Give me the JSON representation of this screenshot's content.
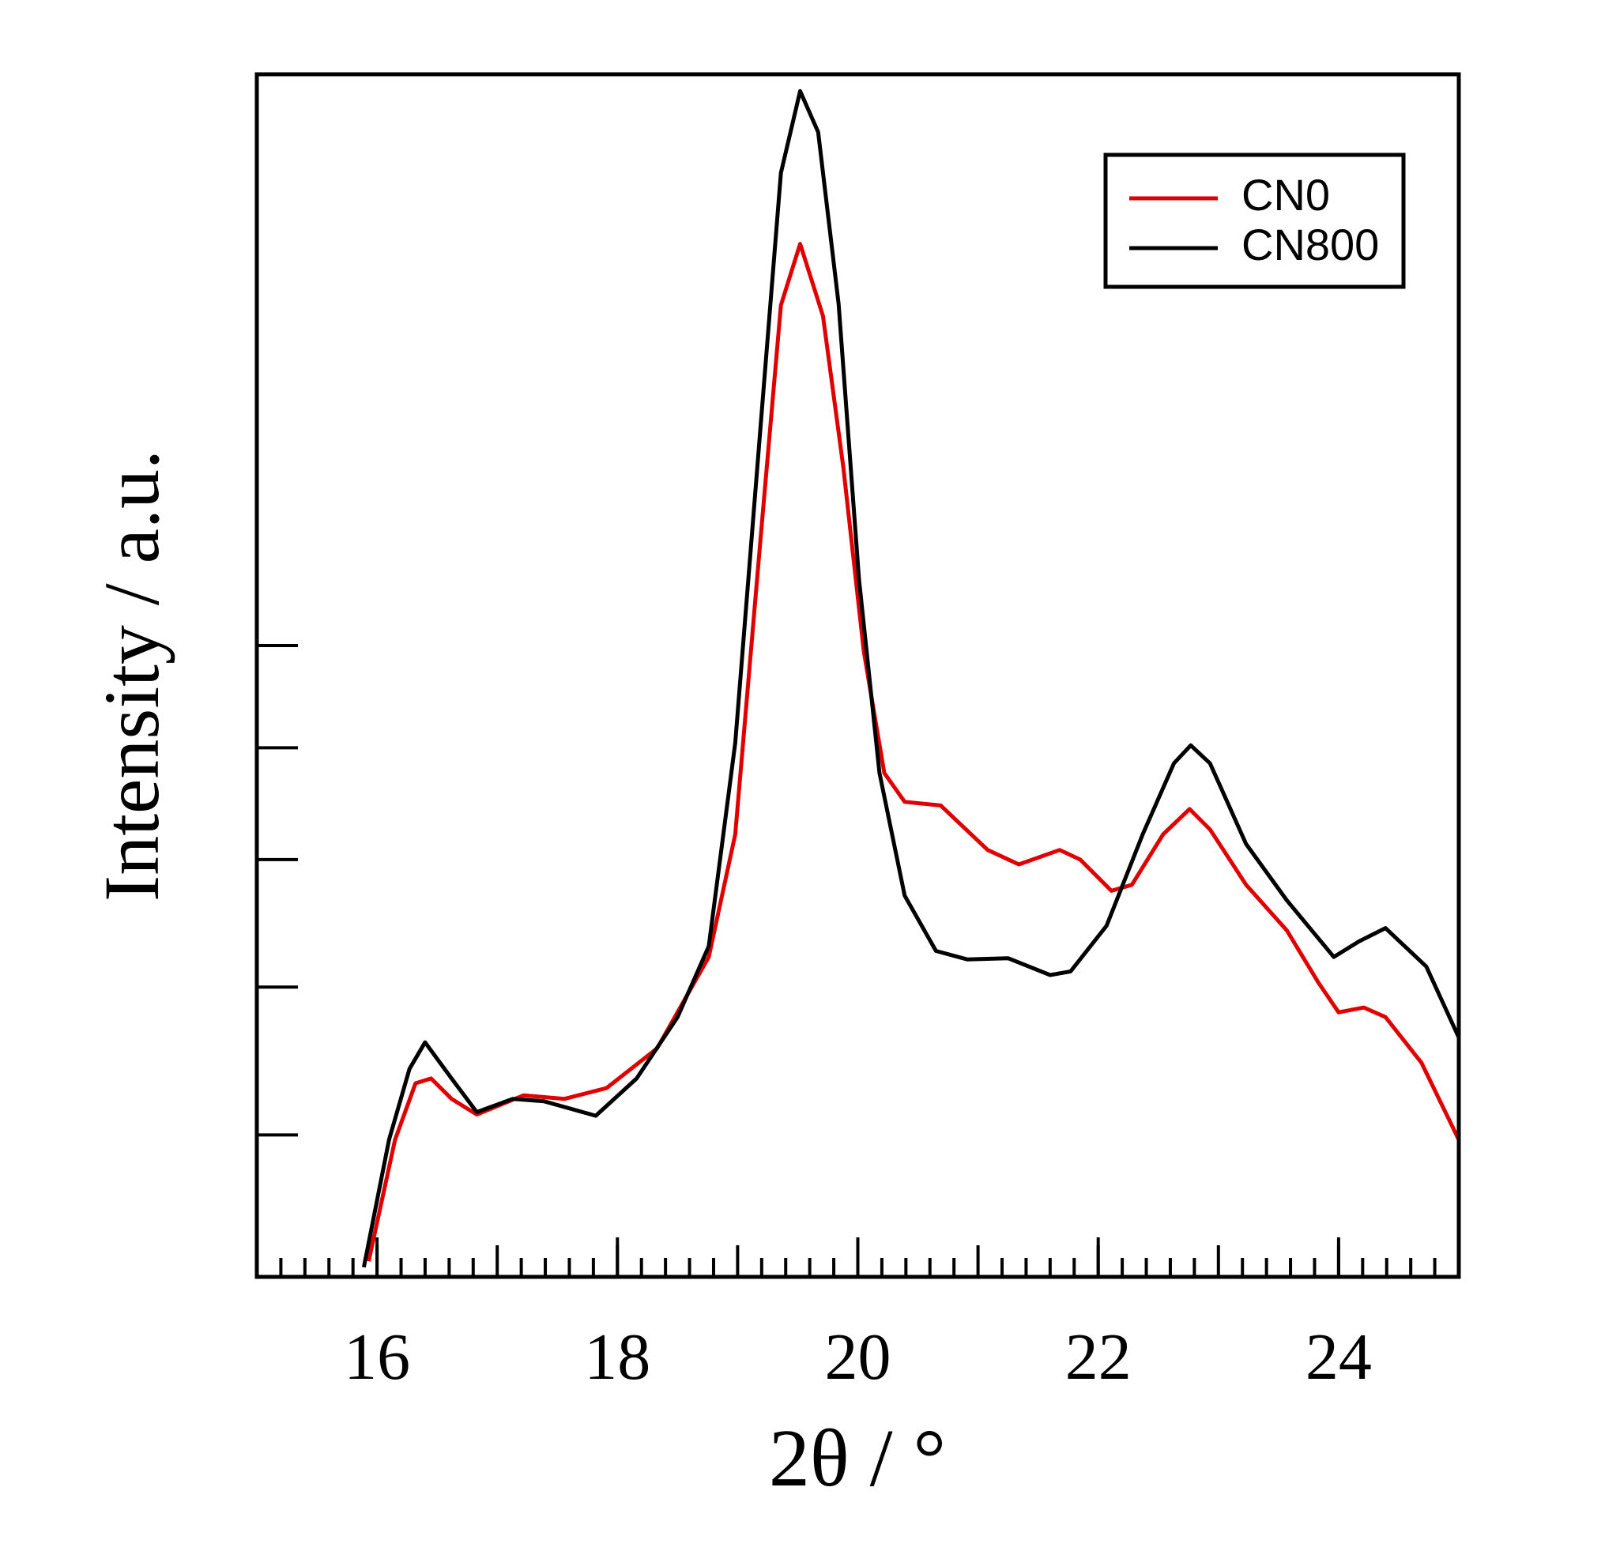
{
  "chart_data": {
    "type": "line",
    "xlabel": "2θ / °",
    "ylabel": "Intensity / a.u.",
    "xlim": [
      15,
      25
    ],
    "xticks": [
      16,
      18,
      20,
      22,
      24
    ],
    "ylim": [
      0,
      100
    ],
    "yticks": [
      11.8,
      24.1,
      34.7,
      44,
      52.5
    ],
    "legend": "upper right",
    "series": [
      {
        "name": "CN0",
        "color": "#e00000",
        "x": [
          15.93,
          16.15,
          16.32,
          16.45,
          16.62,
          16.83,
          17.22,
          17.56,
          17.91,
          18.33,
          18.76,
          18.98,
          19.19,
          19.36,
          19.52,
          19.71,
          19.88,
          20.05,
          20.22,
          20.39,
          20.69,
          21.08,
          21.34,
          21.68,
          21.85,
          22.11,
          22.28,
          22.54,
          22.76,
          22.93,
          23.23,
          23.57,
          23.83,
          24.0,
          24.21,
          24.39,
          24.69,
          25.0
        ],
        "values": [
          1.3,
          11.4,
          16.1,
          16.5,
          14.8,
          13.5,
          15.1,
          14.8,
          15.7,
          19,
          26.6,
          36.8,
          61.3,
          80.8,
          85.9,
          79.9,
          67.3,
          52,
          41.9,
          39.5,
          39.2,
          35.5,
          34.3,
          35.5,
          34.7,
          32.1,
          32.6,
          36.8,
          38.9,
          37.2,
          32.6,
          28.8,
          24.5,
          22,
          22.4,
          21.6,
          17.8,
          11.4
        ]
      },
      {
        "name": "CN800",
        "color": "#000000",
        "x": [
          15.89,
          16.1,
          16.27,
          16.4,
          16.62,
          16.83,
          17.13,
          17.39,
          17.82,
          18.16,
          18.5,
          18.76,
          18.98,
          19.19,
          19.36,
          19.52,
          19.67,
          19.84,
          20.01,
          20.18,
          20.39,
          20.65,
          20.91,
          21.25,
          21.6,
          21.77,
          22.07,
          22.37,
          22.63,
          22.77,
          22.93,
          23.23,
          23.57,
          23.96,
          24.17,
          24.39,
          24.73,
          25.0
        ],
        "values": [
          0.8,
          11.4,
          17.3,
          19.5,
          16.5,
          13.7,
          14.8,
          14.6,
          13.4,
          16.5,
          21.6,
          27.5,
          44.4,
          70.6,
          91.8,
          98.6,
          95.2,
          80.9,
          58,
          41.9,
          31.7,
          27.1,
          26.4,
          26.5,
          25.1,
          25.4,
          29.2,
          36.8,
          42.7,
          44.2,
          42.7,
          36,
          31.3,
          26.6,
          27.9,
          29,
          25.8,
          19.9
        ]
      }
    ]
  }
}
